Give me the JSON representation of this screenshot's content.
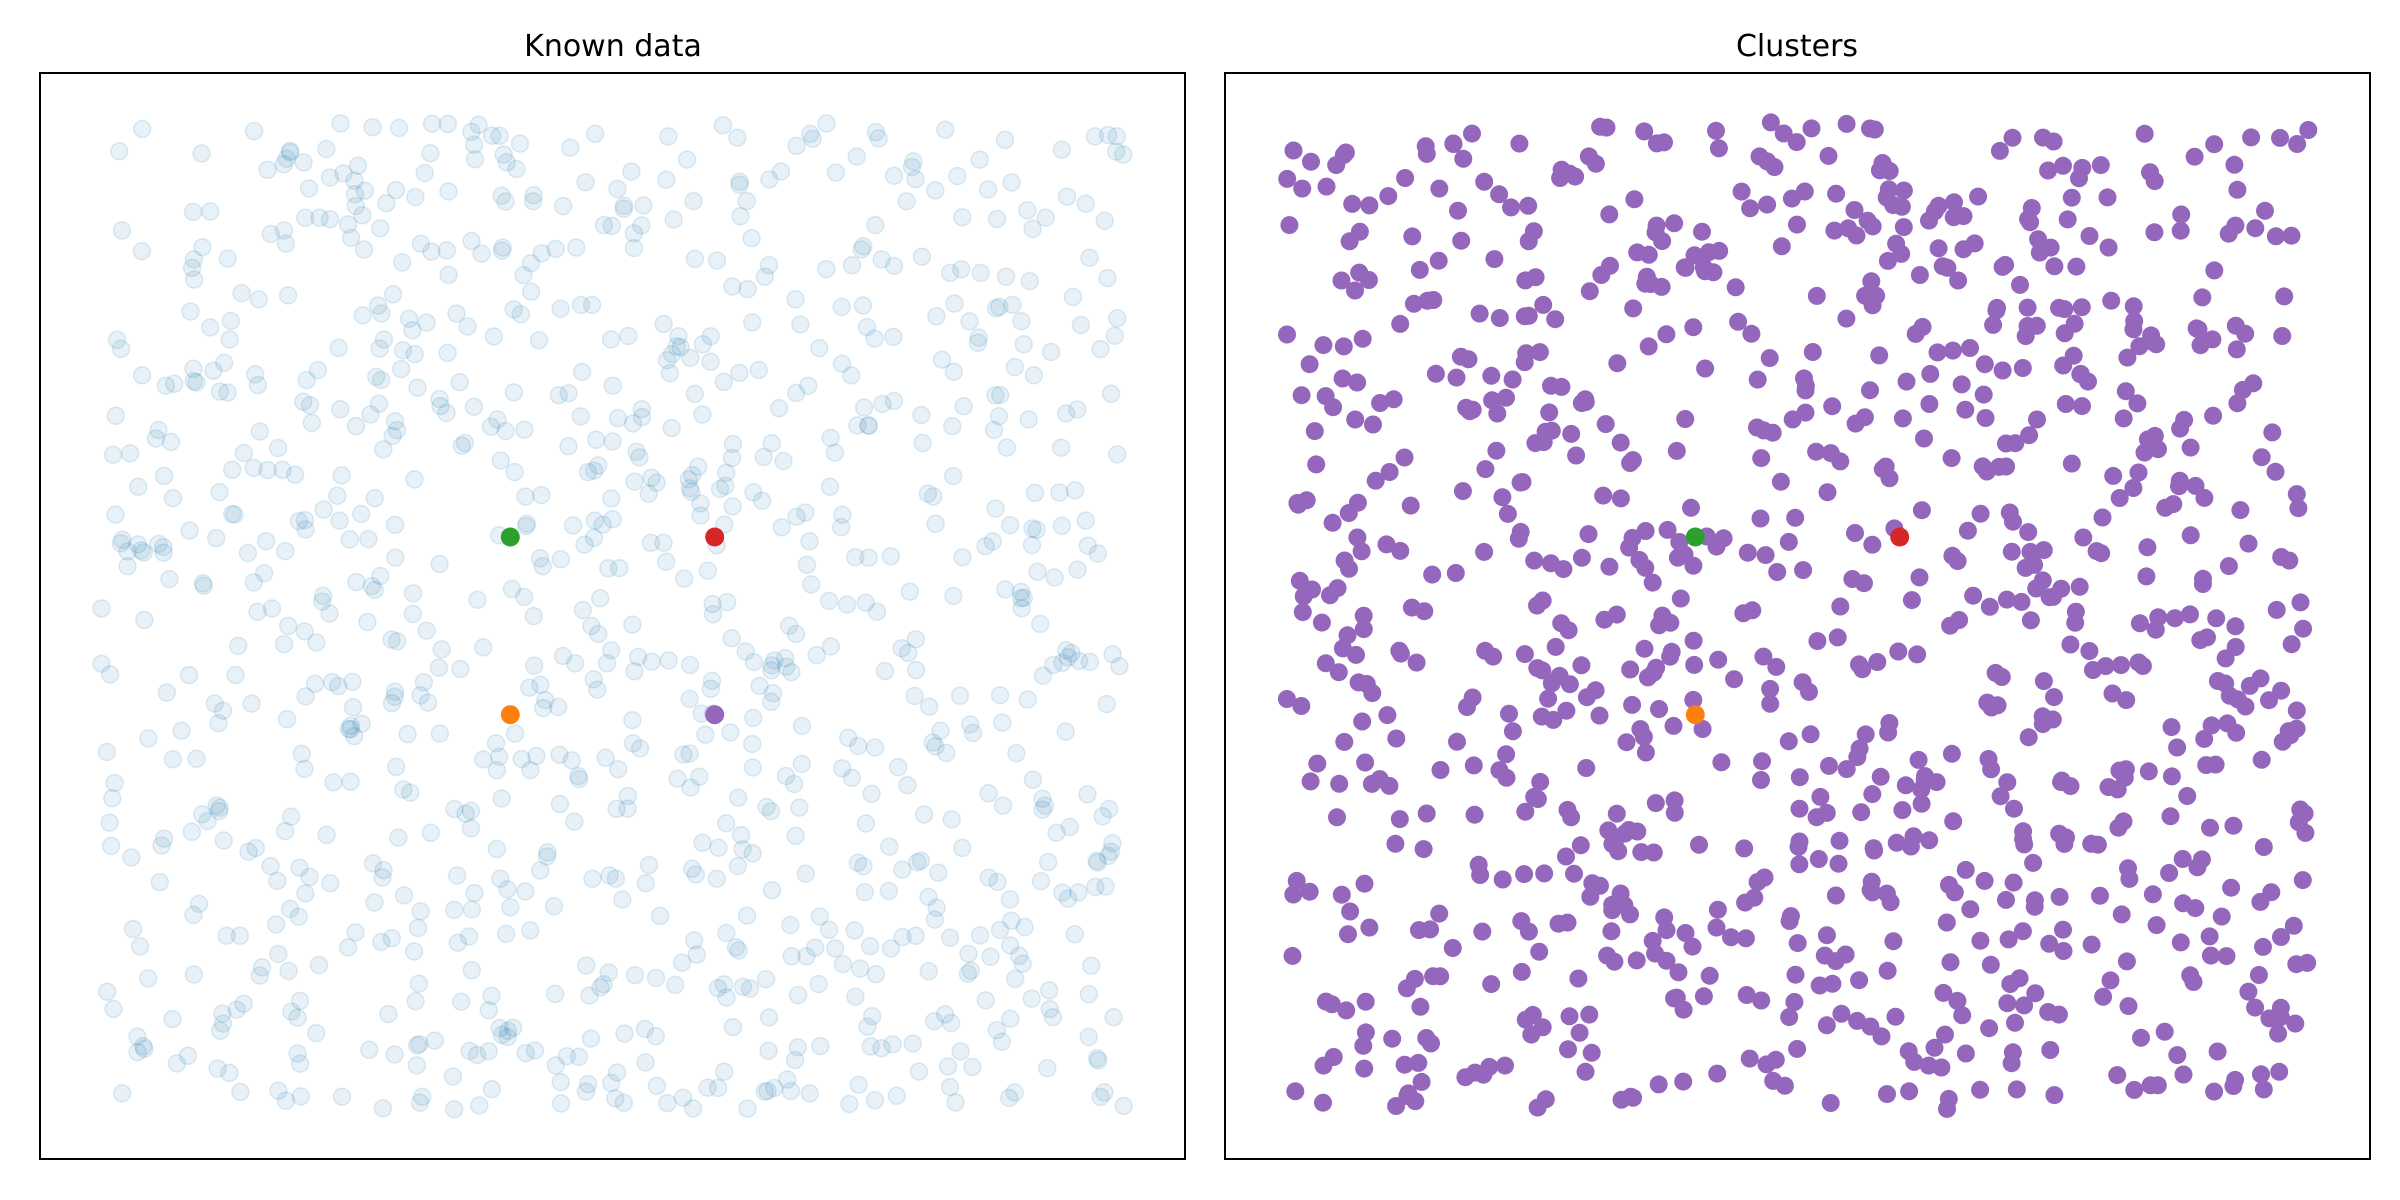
{
  "chart_data": [
    {
      "type": "scatter",
      "title": "Known data",
      "xlabel": "",
      "ylabel": "",
      "xlim": [
        -0.06,
        1.06
      ],
      "ylim": [
        -0.05,
        1.05
      ],
      "grid": false,
      "point_style": "faded",
      "point_color": "#1f77b4",
      "point_count": 1000,
      "seed": 12345,
      "centers": [
        {
          "x": 0.4,
          "y": 0.58,
          "color": "#2ca02c"
        },
        {
          "x": 0.6,
          "y": 0.58,
          "color": "#d62728"
        },
        {
          "x": 0.4,
          "y": 0.4,
          "color": "#ff7f0e"
        },
        {
          "x": 0.6,
          "y": 0.4,
          "color": "#9467bd"
        }
      ]
    },
    {
      "type": "scatter",
      "title": "Clusters",
      "xlabel": "",
      "ylabel": "",
      "xlim": [
        -0.06,
        1.06
      ],
      "ylim": [
        -0.05,
        1.05
      ],
      "grid": false,
      "point_style": "solid",
      "point_color": "#9467bd",
      "point_count": 1000,
      "seed": 67890,
      "centers": [
        {
          "x": 0.4,
          "y": 0.58,
          "color": "#2ca02c"
        },
        {
          "x": 0.6,
          "y": 0.58,
          "color": "#d62728"
        },
        {
          "x": 0.4,
          "y": 0.4,
          "color": "#ff7f0e"
        }
      ]
    }
  ]
}
